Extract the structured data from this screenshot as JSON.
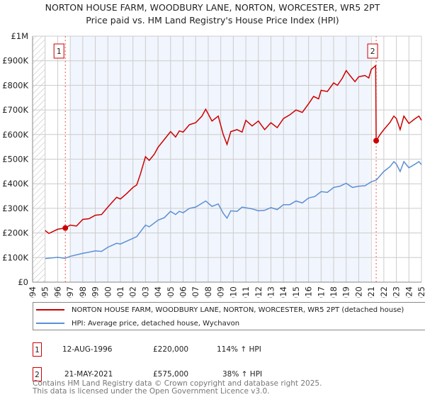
{
  "title": "NORTON HOUSE FARM, WOODBURY LANE, NORTON, WORCESTER, WR5 2PT",
  "subtitle": "Price paid vs. HM Land Registry's House Price Index (HPI)",
  "chart_data": {
    "type": "line",
    "xlim": [
      1994,
      2025
    ],
    "ylim": [
      0,
      1000000
    ],
    "y_ticks": [
      {
        "v": 0,
        "label": "£0"
      },
      {
        "v": 100000,
        "label": "£100K"
      },
      {
        "v": 200000,
        "label": "£200K"
      },
      {
        "v": 300000,
        "label": "£300K"
      },
      {
        "v": 400000,
        "label": "£400K"
      },
      {
        "v": 500000,
        "label": "£500K"
      },
      {
        "v": 600000,
        "label": "£600K"
      },
      {
        "v": 700000,
        "label": "£700K"
      },
      {
        "v": 800000,
        "label": "£800K"
      },
      {
        "v": 900000,
        "label": "£900K"
      },
      {
        "v": 1000000,
        "label": "£1M"
      }
    ],
    "x_ticks": [
      "1994",
      "1995",
      "1996",
      "1997",
      "1998",
      "1999",
      "2000",
      "2001",
      "2002",
      "2003",
      "2004",
      "2005",
      "2006",
      "2007",
      "2008",
      "2009",
      "2010",
      "2011",
      "2012",
      "2013",
      "2014",
      "2015",
      "2016",
      "2017",
      "2018",
      "2019",
      "2020",
      "2021",
      "2022",
      "2023",
      "2024",
      "2025"
    ],
    "grid": true,
    "shaded_range": [
      1997,
      2020.9
    ],
    "hatched_range": [
      1994,
      1995
    ],
    "series": [
      {
        "name": "NORTON HOUSE FARM, WOODBURY LANE, NORTON, WORCESTER, WR5 2PT (detached house)",
        "color": "#cc0000",
        "x": [
          1995,
          1995.3,
          1996,
          1996.6,
          1997,
          1997.5,
          1998,
          1998.5,
          1999,
          1999.5,
          2000,
          2000.7,
          2001,
          2001.5,
          2002,
          2002.3,
          2002.6,
          2003,
          2003.3,
          2003.7,
          2004,
          2004.5,
          2005,
          2005.4,
          2005.7,
          2006,
          2006.5,
          2007,
          2007.5,
          2007.8,
          2008.3,
          2008.8,
          2009.2,
          2009.5,
          2009.8,
          2010.3,
          2010.7,
          2011,
          2011.5,
          2012,
          2012.5,
          2013,
          2013.5,
          2014,
          2014.5,
          2015,
          2015.5,
          2016,
          2016.4,
          2016.8,
          2017,
          2017.5,
          2018,
          2018.3,
          2018.7,
          2019,
          2019.3,
          2019.7,
          2020,
          2020.5,
          2020.8,
          2021,
          2021.35,
          2021.39,
          2021.7,
          2022,
          2022.5,
          2022.8,
          2023,
          2023.3,
          2023.6,
          2024,
          2024.5,
          2024.8,
          2025
        ],
        "y": [
          210,
          198,
          215,
          220,
          232,
          228,
          255,
          258,
          272,
          275,
          305,
          345,
          338,
          360,
          385,
          395,
          440,
          510,
          495,
          520,
          548,
          580,
          612,
          590,
          615,
          610,
          640,
          648,
          675,
          703,
          655,
          675,
          600,
          560,
          612,
          620,
          610,
          658,
          635,
          655,
          620,
          648,
          628,
          665,
          680,
          700,
          690,
          725,
          755,
          745,
          780,
          775,
          810,
          800,
          830,
          860,
          840,
          815,
          835,
          840,
          830,
          865,
          880,
          575,
          600,
          620,
          650,
          675,
          665,
          620,
          675,
          645,
          665,
          675,
          658
        ],
        "y_unit": "thousand GBP"
      },
      {
        "name": "HPI: Average price, detached house, Wychavon",
        "color": "#5b8fd6",
        "x": [
          1995,
          1996,
          1996.6,
          1997,
          1998,
          1999,
          1999.5,
          2000,
          2000.7,
          2001,
          2002,
          2002.3,
          2003,
          2003.3,
          2004,
          2004.5,
          2005,
          2005.4,
          2005.7,
          2006,
          2006.5,
          2007,
          2007.8,
          2008.3,
          2008.8,
          2009.2,
          2009.5,
          2009.8,
          2010.3,
          2010.7,
          2011.5,
          2012,
          2012.5,
          2013,
          2013.5,
          2014,
          2014.5,
          2015,
          2015.5,
          2016,
          2016.5,
          2017,
          2017.5,
          2018,
          2018.5,
          2019,
          2019.5,
          2020,
          2020.5,
          2021,
          2021.4,
          2022,
          2022.5,
          2022.8,
          2023,
          2023.3,
          2023.6,
          2024,
          2024.5,
          2024.8,
          2025
        ],
        "y": [
          96,
          101,
          97,
          105,
          117,
          127,
          125,
          142,
          158,
          155,
          178,
          185,
          232,
          225,
          252,
          262,
          288,
          275,
          288,
          282,
          300,
          305,
          330,
          308,
          318,
          280,
          260,
          290,
          288,
          305,
          298,
          290,
          292,
          303,
          295,
          315,
          315,
          330,
          322,
          342,
          348,
          368,
          365,
          385,
          390,
          402,
          385,
          390,
          392,
          408,
          415,
          450,
          470,
          490,
          480,
          450,
          490,
          465,
          480,
          490,
          478
        ],
        "y_unit": "thousand GBP"
      }
    ],
    "markers": [
      {
        "id": "1",
        "x": 1996.61,
        "y": 220
      },
      {
        "id": "2",
        "x": 2021.39,
        "y": 575
      }
    ],
    "legend_position": "bottom"
  },
  "legend": {
    "items": [
      "NORTON HOUSE FARM, WOODBURY LANE, NORTON, WORCESTER, WR5 2PT (detached house)",
      "HPI: Average price, detached house, Wychavon"
    ]
  },
  "sales": [
    {
      "id": "1",
      "date": "12-AUG-1996",
      "price": "£220,000",
      "hpi": "114% ↑ HPI"
    },
    {
      "id": "2",
      "date": "21-MAY-2021",
      "price": "£575,000",
      "hpi": "38% ↑ HPI"
    }
  ],
  "footer": {
    "line1": "Contains HM Land Registry data © Crown copyright and database right 2025.",
    "line2": "This data is licensed under the Open Government Licence v3.0."
  }
}
